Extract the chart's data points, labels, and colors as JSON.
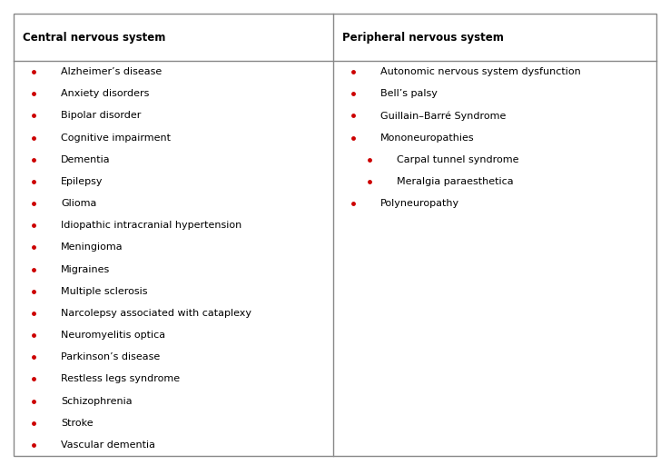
{
  "col1_header": "Central nervous system",
  "col2_header": "Peripheral nervous system",
  "col1_items": [
    {
      "text": "Alzheimer’s disease",
      "indent": 0
    },
    {
      "text": "Anxiety disorders",
      "indent": 0
    },
    {
      "text": "Bipolar disorder",
      "indent": 0
    },
    {
      "text": "Cognitive impairment",
      "indent": 0
    },
    {
      "text": "Dementia",
      "indent": 0
    },
    {
      "text": "Epilepsy",
      "indent": 0
    },
    {
      "text": "Glioma",
      "indent": 0
    },
    {
      "text": "Idiopathic intracranial hypertension",
      "indent": 0
    },
    {
      "text": "Meningioma",
      "indent": 0
    },
    {
      "text": "Migraines",
      "indent": 0
    },
    {
      "text": "Multiple sclerosis",
      "indent": 0
    },
    {
      "text": "Narcolepsy associated with cataplexy",
      "indent": 0
    },
    {
      "text": "Neuromyelitis optica",
      "indent": 0
    },
    {
      "text": "Parkinson’s disease",
      "indent": 0
    },
    {
      "text": "Restless legs syndrome",
      "indent": 0
    },
    {
      "text": "Schizophrenia",
      "indent": 0
    },
    {
      "text": "Stroke",
      "indent": 0
    },
    {
      "text": "Vascular dementia",
      "indent": 0
    }
  ],
  "col2_items": [
    {
      "text": "Autonomic nervous system dysfunction",
      "indent": 0
    },
    {
      "text": "Bell’s palsy",
      "indent": 0
    },
    {
      "text": "Guillain–Barré Syndrome",
      "indent": 0
    },
    {
      "text": "Mononeuropathies",
      "indent": 0
    },
    {
      "text": "Carpal tunnel syndrome",
      "indent": 1
    },
    {
      "text": "Meralgia paraesthetica",
      "indent": 1
    },
    {
      "text": "Polyneuropathy",
      "indent": 0
    }
  ],
  "bullet_color": "#cc0000",
  "border_color": "#888888",
  "header_bg": "#ffffff",
  "content_bg": "#ffffff",
  "header_font_size": 8.5,
  "item_font_size": 8.0,
  "fig_width": 7.38,
  "fig_height": 5.12,
  "dpi": 100
}
